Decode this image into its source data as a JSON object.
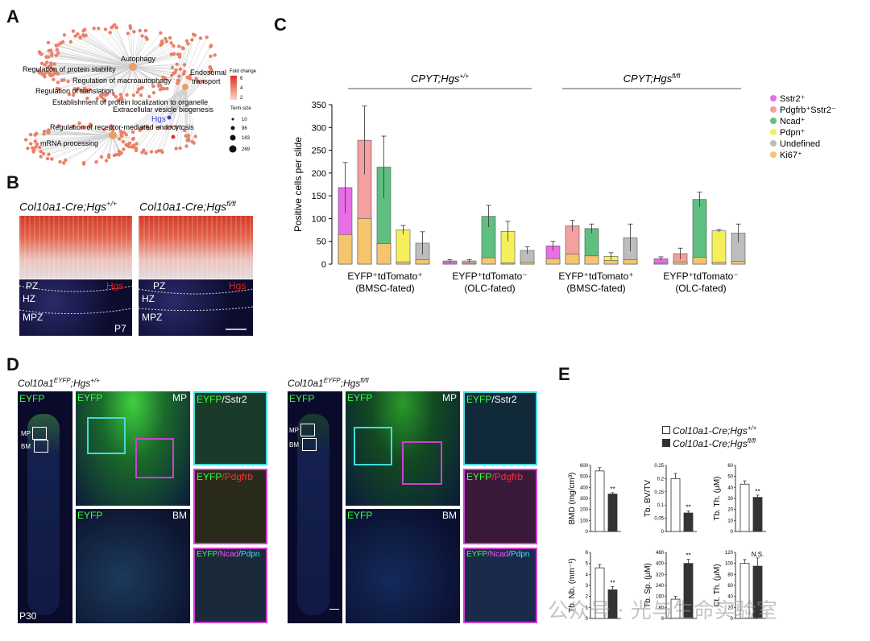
{
  "panels": {
    "A": "A",
    "B": "B",
    "C": "C",
    "D": "D",
    "E": "E"
  },
  "panelA": {
    "terms": [
      "Autophagy",
      "Regulation of protein stability",
      "Regulation of macroautophagy",
      "Regulation of translation",
      "Endosomal transport",
      "Establishment of protein localization to organelle",
      "Extracellular vesicle biogenesis",
      "Hgs",
      "Regulation of receptor-mediated endocytosis",
      "mRNA processing"
    ],
    "fold_change_title": "Fold change",
    "fold_change_ticks": [
      "6",
      "4",
      "2"
    ],
    "term_size_title": "Term size",
    "term_size_values": [
      "10",
      "96",
      "183",
      "269"
    ]
  },
  "panelB": {
    "left_title_base": "Col10a1-Cre;Hgs",
    "left_title_sup": "+/+",
    "right_title_base": "Col10a1-Cre;Hgs",
    "right_title_sup": "fl/fl",
    "zones": [
      "PZ",
      "HZ",
      "MPZ"
    ],
    "stain_label": "Hgs",
    "age": "P7"
  },
  "chart_data": {
    "type": "bar",
    "stacked": true,
    "group_headers": [
      {
        "base": "CPYT;Hgs",
        "sup": "+/+"
      },
      {
        "base": "CPYT;Hgs",
        "sup": "fl/fl"
      }
    ],
    "ylabel": "Positive cells per slide",
    "ylim": [
      0,
      350
    ],
    "yticks": [
      0,
      50,
      100,
      150,
      200,
      250,
      300,
      350
    ],
    "x_groups": [
      {
        "line1": "EYFP⁺tdTomato⁺",
        "line2": "(BMSC-fated)"
      },
      {
        "line1": "EYFP⁺tdTomato⁻",
        "line2": "(OLC-fated)"
      },
      {
        "line1": "EYFP⁺tdTomato⁺",
        "line2": "(BMSC-fated)"
      },
      {
        "line1": "EYFP⁺tdTomato⁻",
        "line2": "(OLC-fated)"
      }
    ],
    "legend": [
      {
        "name": "Sstr2⁺",
        "color": "#e86ee8"
      },
      {
        "name": "Pdgfrb⁺Sstr2⁻",
        "color": "#f4a0a0"
      },
      {
        "name": "Ncad⁺",
        "color": "#5fbf80"
      },
      {
        "name": "Pdpn⁺",
        "color": "#f5f05a"
      },
      {
        "name": "Undefined",
        "color": "#bdbdbd"
      },
      {
        "name": "Ki67⁺",
        "color": "#f5c56e"
      }
    ],
    "bars": [
      {
        "group": 0,
        "color": "#e86ee8",
        "total": 168,
        "ki67": 65,
        "err": 55
      },
      {
        "group": 0,
        "color": "#f4a0a0",
        "total": 272,
        "ki67": 100,
        "err": 75
      },
      {
        "group": 0,
        "color": "#5fbf80",
        "total": 213,
        "ki67": 45,
        "err": 68
      },
      {
        "group": 0,
        "color": "#f5f05a",
        "total": 75,
        "ki67": 5,
        "err": 10
      },
      {
        "group": 0,
        "color": "#bdbdbd",
        "total": 46,
        "ki67": 10,
        "err": 25
      },
      {
        "group": 1,
        "color": "#e86ee8",
        "total": 7,
        "ki67": 2,
        "err": 3
      },
      {
        "group": 1,
        "color": "#f4a0a0",
        "total": 7,
        "ki67": 2,
        "err": 3
      },
      {
        "group": 1,
        "color": "#5fbf80",
        "total": 105,
        "ki67": 14,
        "err": 24
      },
      {
        "group": 1,
        "color": "#f5f05a",
        "total": 72,
        "ki67": 3,
        "err": 22
      },
      {
        "group": 1,
        "color": "#bdbdbd",
        "total": 30,
        "ki67": 4,
        "err": 8
      },
      {
        "group": 2,
        "color": "#e86ee8",
        "total": 40,
        "ki67": 12,
        "err": 10
      },
      {
        "group": 2,
        "color": "#f4a0a0",
        "total": 84,
        "ki67": 22,
        "err": 12
      },
      {
        "group": 2,
        "color": "#5fbf80",
        "total": 78,
        "ki67": 18,
        "err": 10
      },
      {
        "group": 2,
        "color": "#f5f05a",
        "total": 17,
        "ki67": 8,
        "err": 8
      },
      {
        "group": 2,
        "color": "#bdbdbd",
        "total": 58,
        "ki67": 10,
        "err": 30
      },
      {
        "group": 3,
        "color": "#e86ee8",
        "total": 12,
        "ki67": 2,
        "err": 4
      },
      {
        "group": 3,
        "color": "#f4a0a0",
        "total": 23,
        "ki67": 5,
        "err": 12
      },
      {
        "group": 3,
        "color": "#5fbf80",
        "total": 142,
        "ki67": 15,
        "err": 16
      },
      {
        "group": 3,
        "color": "#f5f05a",
        "total": 73,
        "ki67": 4,
        "err": 3
      },
      {
        "group": 3,
        "color": "#bdbdbd",
        "total": 68,
        "ki67": 6,
        "err": 20
      }
    ]
  },
  "panelD": {
    "left_title_base": "Col10a1",
    "left_title_sup1": "EYFP",
    "left_title_mid": ";Hgs",
    "left_title_sup2": "+/+",
    "right_title_base": "Col10a1",
    "right_title_sup1": "EYFP",
    "right_title_mid": ";Hgs",
    "right_title_sup2": "fl/fl",
    "eyfp": "EYFP",
    "mp": "MP",
    "bm": "BM",
    "sstr2": "/Sstr2",
    "pdgfrb": "/Pdgfrb",
    "ncad": "/Ncad",
    "pdpn": "/Pdpn",
    "age": "P30"
  },
  "panelE": {
    "legend": [
      {
        "base": "Col10a1-Cre;Hgs",
        "sup": "+/+",
        "fill": "#ffffff"
      },
      {
        "base": "Col10a1-Cre;Hgs",
        "sup": "fl/fl",
        "fill": "#333333"
      }
    ],
    "charts": [
      {
        "ylabel": "BMD (mg/cm³)",
        "yticks": [
          "0",
          "100",
          "200",
          "300",
          "400",
          "500",
          "600"
        ],
        "ymax": 600,
        "wt": 550,
        "ko": 340,
        "wt_err": 30,
        "ko_err": 12,
        "sig": "**"
      },
      {
        "ylabel": "Tb. BV/TV",
        "yticks": [
          "0",
          "0.05",
          "0.1",
          "0.15",
          "0.2",
          "0.25"
        ],
        "ymax": 0.25,
        "wt": 0.2,
        "ko": 0.07,
        "wt_err": 0.02,
        "ko_err": 0.008,
        "sig": "**"
      },
      {
        "ylabel": "Tb. Th. (μM)",
        "yticks": [
          "0",
          "10",
          "20",
          "30",
          "40",
          "50",
          "60"
        ],
        "ymax": 60,
        "wt": 43,
        "ko": 31,
        "wt_err": 3,
        "ko_err": 2,
        "sig": "**"
      },
      {
        "ylabel": "Tb. Nb. (mm⁻¹)",
        "yticks": [
          "0",
          "1",
          "2",
          "3",
          "4",
          "5",
          "6"
        ],
        "ymax": 6,
        "wt": 4.6,
        "ko": 2.6,
        "wt_err": 0.3,
        "ko_err": 0.3,
        "sig": "**"
      },
      {
        "ylabel": "Tb. Sp. (μM)",
        "yticks": [
          "0",
          "80",
          "160",
          "240",
          "320",
          "400",
          "480"
        ],
        "ymax": 480,
        "wt": 140,
        "ko": 400,
        "wt_err": 20,
        "ko_err": 30,
        "sig": "**"
      },
      {
        "ylabel": "Ct. Th. (μM)",
        "yticks": [
          "0",
          "20",
          "40",
          "60",
          "80",
          "100",
          "120"
        ],
        "ymax": 120,
        "wt": 100,
        "ko": 95,
        "wt_err": 7,
        "ko_err": 15,
        "sig": "N.S."
      }
    ]
  },
  "watermark": "公众号 · 光与生命实验室"
}
